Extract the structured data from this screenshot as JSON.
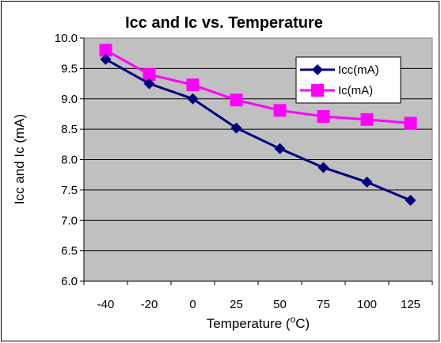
{
  "chart_data": {
    "type": "line",
    "title": "Icc and Ic vs. Temperature",
    "xlabel_prefix": "Temperature (",
    "xlabel_sup": "o",
    "xlabel_suffix": "C)",
    "ylabel": "Icc and Ic (mA)",
    "categories": [
      "-40",
      "-20",
      "0",
      "25",
      "50",
      "75",
      "100",
      "125"
    ],
    "ylim": [
      6.0,
      10.0
    ],
    "yticks": [
      "6.0",
      "6.5",
      "7.0",
      "7.5",
      "8.0",
      "8.5",
      "9.0",
      "9.5",
      "10.0"
    ],
    "grid": true,
    "legend_position": "top-right",
    "plot_background": "#c0c0c0",
    "series": [
      {
        "name": "Icc(mA)",
        "color": "#000080",
        "marker": "diamond",
        "values": [
          9.65,
          9.25,
          9.0,
          8.52,
          8.18,
          7.87,
          7.63,
          7.33
        ]
      },
      {
        "name": "Ic(mA)",
        "color": "#ff00ff",
        "marker": "square",
        "values": [
          9.8,
          9.4,
          9.23,
          8.98,
          8.81,
          8.71,
          8.66,
          8.6
        ]
      }
    ]
  }
}
